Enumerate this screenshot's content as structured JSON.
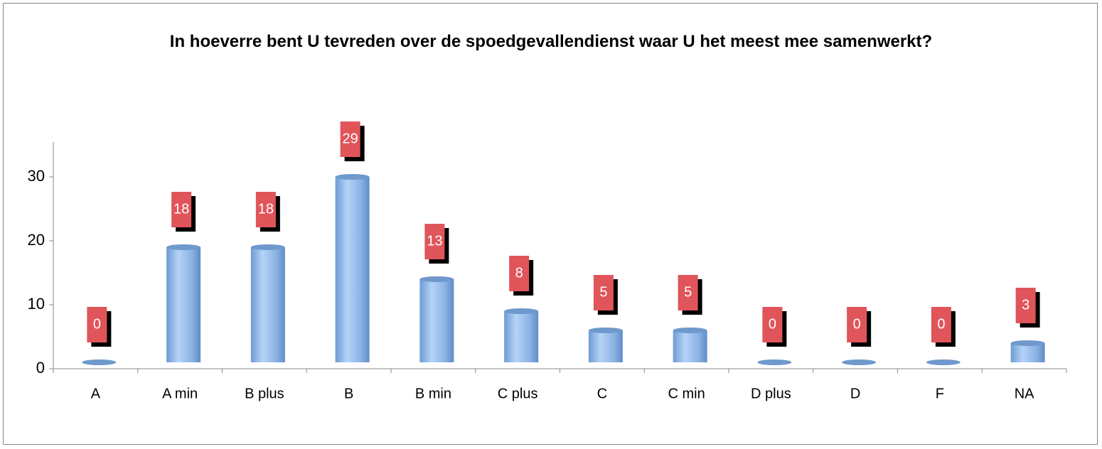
{
  "chart_data": {
    "type": "bar",
    "title": "In hoeverre bent U tevreden over de spoedgevallendienst waar U het meest mee samenwerkt?",
    "categories": [
      "A",
      "A min",
      "B plus",
      "B",
      "B min",
      "C plus",
      "C",
      "C min",
      "D plus",
      "D",
      "F",
      "NA"
    ],
    "values": [
      0,
      18,
      18,
      29,
      13,
      8,
      5,
      5,
      0,
      0,
      0,
      3
    ],
    "color": "#8fb8e8",
    "label_color": "#e0555a",
    "ylim": [
      0,
      30
    ],
    "yticks": [
      0,
      10,
      20,
      30
    ],
    "grid": false
  }
}
